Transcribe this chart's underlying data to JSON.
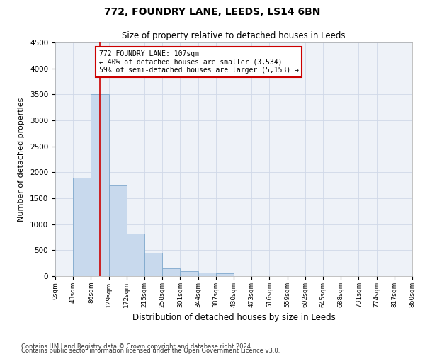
{
  "title": "772, FOUNDRY LANE, LEEDS, LS14 6BN",
  "subtitle": "Size of property relative to detached houses in Leeds",
  "xlabel": "Distribution of detached houses by size in Leeds",
  "ylabel": "Number of detached properties",
  "annotation_line1": "772 FOUNDRY LANE: 107sqm",
  "annotation_line2": "← 40% of detached houses are smaller (3,534)",
  "annotation_line3": "59% of semi-detached houses are larger (5,153) →",
  "footer_line1": "Contains HM Land Registry data © Crown copyright and database right 2024.",
  "footer_line2": "Contains public sector information licensed under the Open Government Licence v3.0.",
  "property_size": 107,
  "bar_left_edges": [
    0,
    43,
    86,
    129,
    172,
    215,
    258,
    301,
    344,
    387,
    430,
    473,
    516,
    559,
    602,
    645,
    688,
    731,
    774,
    817
  ],
  "bar_heights": [
    5,
    1900,
    3500,
    1750,
    820,
    450,
    155,
    90,
    65,
    55,
    0,
    0,
    0,
    0,
    0,
    0,
    0,
    0,
    0,
    0
  ],
  "bin_width": 43,
  "bar_color": "#c8d9ed",
  "bar_edge_color": "#7fa8cc",
  "vline_color": "#cc0000",
  "annotation_box_color": "#cc0000",
  "grid_color": "#d0d8e8",
  "bg_color": "#eef2f8",
  "ylim": [
    0,
    4500
  ],
  "yticks": [
    0,
    500,
    1000,
    1500,
    2000,
    2500,
    3000,
    3500,
    4000,
    4500
  ],
  "tick_labels": [
    "0sqm",
    "43sqm",
    "86sqm",
    "129sqm",
    "172sqm",
    "215sqm",
    "258sqm",
    "301sqm",
    "344sqm",
    "387sqm",
    "430sqm",
    "473sqm",
    "516sqm",
    "559sqm",
    "602sqm",
    "645sqm",
    "688sqm",
    "731sqm",
    "774sqm",
    "817sqm",
    "860sqm"
  ]
}
